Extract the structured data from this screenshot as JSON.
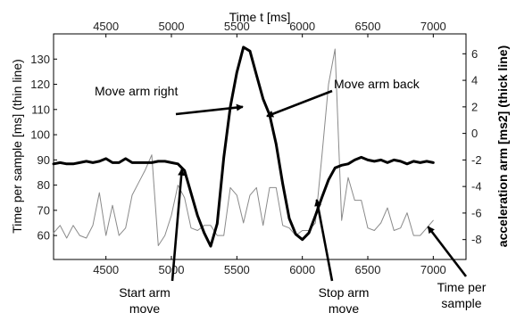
{
  "chart_data": {
    "type": "line",
    "x_top_label": "Time t [ms]",
    "ylabel_left": "Time per sample [ms] (thin line)",
    "ylabel_right": "acceleration arm [ms2] (thick line)",
    "xlim": [
      4100,
      7250
    ],
    "xticks": [
      4500,
      5000,
      5500,
      6000,
      6500,
      7000
    ],
    "ylim_left": [
      50.5,
      140
    ],
    "yticks_left": [
      60,
      70,
      80,
      90,
      100,
      110,
      120,
      130
    ],
    "ylim_right": [
      -9.5,
      7.5
    ],
    "yticks_right": [
      -8,
      -6,
      -4,
      -2,
      0,
      2,
      4,
      6
    ],
    "series": [
      {
        "axis": "left",
        "style": "thin",
        "color": "#8a8a8a",
        "x": [
          4100,
          4150,
          4200,
          4250,
          4300,
          4350,
          4400,
          4450,
          4500,
          4550,
          4600,
          4650,
          4700,
          4750,
          4800,
          4850,
          4900,
          4950,
          5000,
          5050,
          5100,
          5150,
          5200,
          5250,
          5300,
          5350,
          5400,
          5450,
          5500,
          5550,
          5600,
          5650,
          5700,
          5750,
          5800,
          5850,
          5900,
          5950,
          6000,
          6050,
          6100,
          6150,
          6200,
          6250,
          6300,
          6350,
          6400,
          6450,
          6500,
          6550,
          6600,
          6650,
          6700,
          6750,
          6800,
          6850,
          6900,
          6950,
          7000
        ],
        "values": [
          61,
          64,
          59,
          64,
          60,
          59,
          64,
          77,
          60,
          72,
          60,
          63,
          76,
          81,
          86,
          92,
          56,
          60,
          68,
          80,
          75,
          63,
          62,
          64,
          64,
          60,
          60,
          79,
          76,
          65,
          76,
          79,
          64,
          79,
          79,
          64,
          63,
          60,
          62,
          62,
          65,
          92,
          120,
          134,
          66,
          83,
          74,
          74,
          63,
          62,
          65,
          71,
          62,
          63,
          69,
          60,
          60,
          63,
          66
        ]
      },
      {
        "axis": "right",
        "style": "thick",
        "color": "#000000",
        "x": [
          4100,
          4150,
          4200,
          4250,
          4300,
          4350,
          4400,
          4450,
          4500,
          4550,
          4600,
          4650,
          4700,
          4750,
          4800,
          4850,
          4900,
          4950,
          5000,
          5050,
          5100,
          5150,
          5200,
          5250,
          5300,
          5350,
          5400,
          5450,
          5500,
          5550,
          5600,
          5650,
          5700,
          5750,
          5800,
          5850,
          5900,
          5950,
          6000,
          6050,
          6100,
          6150,
          6200,
          6250,
          6300,
          6350,
          6400,
          6450,
          6500,
          6550,
          6600,
          6650,
          6700,
          6750,
          6800,
          6850,
          6900,
          6950,
          7000
        ],
        "values": [
          -2.3,
          -2.2,
          -2.3,
          -2.3,
          -2.2,
          -2.1,
          -2.2,
          -2.1,
          -1.9,
          -2.2,
          -2.2,
          -1.9,
          -2.2,
          -2.2,
          -2.2,
          -2.2,
          -2.1,
          -2.1,
          -2.2,
          -2.3,
          -2.8,
          -4.5,
          -6.2,
          -7.5,
          -8.5,
          -6.8,
          -1.8,
          2.0,
          4.6,
          6.5,
          6.2,
          4.4,
          2.6,
          1.4,
          -0.8,
          -3.8,
          -6.4,
          -7.6,
          -8.0,
          -7.5,
          -6.2,
          -4.8,
          -3.5,
          -2.6,
          -2.4,
          -2.3,
          -2.0,
          -1.8,
          -2.0,
          -2.1,
          -2.0,
          -2.2,
          -2.0,
          -2.1,
          -2.3,
          -2.1,
          -2.2,
          -2.1,
          -2.2
        ]
      }
    ],
    "annotations": [
      {
        "name": "move-arm-right",
        "lines": [
          "Move arm right"
        ],
        "data_x": 5545,
        "data_y_right": 2.0
      },
      {
        "name": "move-arm-back",
        "lines": [
          "Move arm back"
        ],
        "data_x": 5730,
        "data_y_right": 1.3
      },
      {
        "name": "start-arm-move",
        "lines": [
          "Start arm",
          "move"
        ],
        "data_x": 5080,
        "data_y_right": -2.7
      },
      {
        "name": "stop-arm-move",
        "lines": [
          "Stop arm",
          "move"
        ],
        "data_x": 6110,
        "data_y_right": -5.0
      },
      {
        "name": "time-per-sample",
        "lines": [
          "Time per",
          "sample"
        ],
        "data_x": 6960,
        "data_y_left": 63.5
      }
    ]
  }
}
